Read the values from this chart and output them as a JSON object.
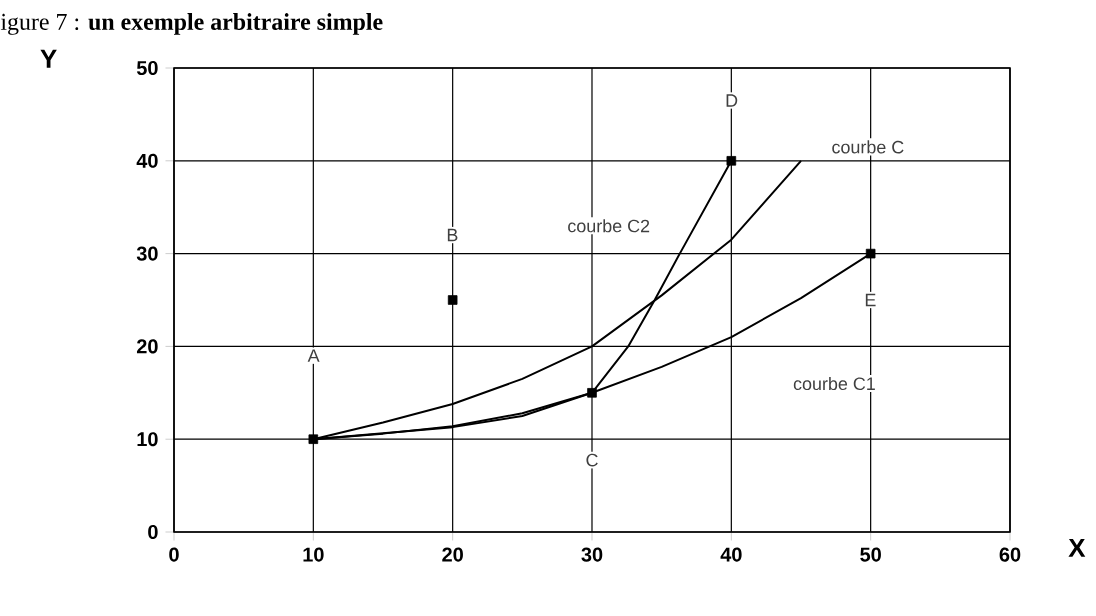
{
  "chart_data": {
    "type": "line",
    "title": "igure 7 : **un exemple arbitraire simple**",
    "xlabel": "X",
    "ylabel": "Y",
    "xlim": [
      0,
      60
    ],
    "ylim": [
      0,
      50
    ],
    "xticks": [
      0,
      10,
      20,
      30,
      40,
      50,
      60
    ],
    "yticks": [
      0,
      10,
      20,
      30,
      40,
      50
    ],
    "grid": true,
    "series": [
      {
        "type": "line",
        "color": "#000000",
        "marker": "none",
        "x": [
          10,
          15,
          20,
          25,
          30,
          35,
          40,
          45
        ],
        "values": [
          10,
          11.8,
          13.8,
          16.5,
          20,
          25.5,
          31.5,
          40
        ]
      },
      {
        "type": "line",
        "color": "#000000",
        "marker": "none",
        "x": [
          10,
          15,
          20,
          25,
          30,
          35,
          40,
          45,
          50
        ],
        "values": [
          10,
          10.6,
          11.4,
          12.8,
          15,
          17.8,
          21,
          25.2,
          30
        ]
      },
      {
        "type": "line",
        "color": "#000000",
        "marker": "none",
        "x": [
          10,
          20,
          25,
          30,
          32.6,
          34.5,
          36.3,
          40
        ],
        "values": [
          10,
          11.3,
          12.5,
          15,
          20,
          25,
          30,
          40
        ]
      },
      {
        "type": "scatter",
        "color": "#000000",
        "marker": "square",
        "x": [
          10,
          20,
          30,
          40,
          50
        ],
        "values": [
          10,
          25,
          15,
          40,
          30
        ]
      }
    ],
    "annotations": [
      "courbe C",
      "courbe C2",
      "courbe C1",
      "A",
      "B",
      "C",
      "D",
      "E"
    ]
  }
}
